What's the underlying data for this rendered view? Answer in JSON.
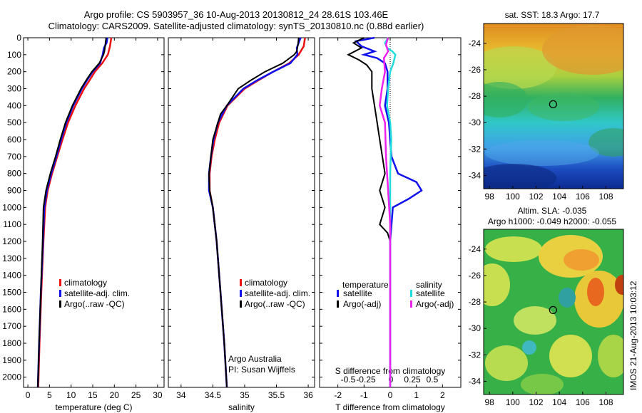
{
  "header": {
    "title_line1": "Argo profile: CS 5903957_36 10-Aug-2013 20130812_24 28.61S 103.46E",
    "title_line2": "Climatology: CARS2009. Satellite-adjusted climatology: synTS_20130810.nc (0.88d earlier)"
  },
  "colors": {
    "climatology": "#ee1111",
    "satellite": "#1111ee",
    "argo": "#000000",
    "salinity_satellite": "#22dddd",
    "salinity_argo": "#ee22ee"
  },
  "chart_data": [
    {
      "type": "line",
      "name_key": "temperature_panel",
      "xlabel": "temperature (deg C)",
      "xlim": [
        -1,
        31.5
      ],
      "xticks": [
        "0",
        "5",
        "10",
        "15",
        "20",
        "25",
        "30"
      ],
      "ylim": [
        0,
        2060
      ],
      "yticks": [
        "0",
        "100",
        "200",
        "300",
        "400",
        "500",
        "600",
        "700",
        "800",
        "900",
        "1000",
        "1100",
        "1200",
        "1300",
        "1400",
        "1500",
        "1600",
        "1700",
        "1800",
        "1900",
        "2000"
      ],
      "legend": [
        "climatology",
        "satellite-adj. clim.",
        "Argo(..raw -QC)"
      ],
      "legend_position": "lower-center",
      "series": [
        {
          "name": "climatology",
          "color_key": "climatology",
          "depth": [
            0,
            50,
            100,
            150,
            200,
            250,
            300,
            400,
            500,
            600,
            700,
            800,
            900,
            1000,
            1200,
            1500,
            1800,
            2060
          ],
          "values": [
            19.3,
            19.0,
            18.5,
            17.2,
            15.5,
            14.3,
            13.0,
            11.0,
            9.3,
            8.0,
            6.8,
            5.6,
            4.6,
            4.0,
            3.6,
            3.1,
            2.7,
            2.4
          ]
        },
        {
          "name": "satellite-adj. clim.",
          "color_key": "satellite",
          "depth": [
            0,
            30,
            60,
            100,
            150,
            200,
            250,
            300,
            400,
            500,
            600,
            700,
            800,
            900,
            1000,
            1200,
            1500,
            1800,
            2060
          ],
          "values": [
            18.4,
            18.2,
            17.6,
            17.3,
            16.7,
            15.0,
            13.7,
            12.5,
            10.5,
            8.9,
            7.7,
            6.6,
            5.4,
            4.4,
            3.8,
            3.5,
            3.0,
            2.6,
            2.3
          ]
        },
        {
          "name": "Argo(..raw -QC)",
          "color_key": "argo",
          "depth": [
            0,
            40,
            80,
            100,
            150,
            200,
            250,
            300,
            400,
            500,
            600,
            700,
            800,
            900,
            1000,
            1200,
            1500,
            1800,
            2060
          ],
          "values": [
            18.1,
            17.9,
            17.7,
            17.5,
            16.5,
            14.8,
            13.5,
            12.3,
            10.3,
            8.7,
            7.5,
            6.4,
            5.2,
            4.2,
            3.6,
            3.4,
            3.0,
            2.6,
            2.3
          ]
        }
      ]
    },
    {
      "type": "line",
      "name_key": "salinity_panel",
      "xlabel": "salinity",
      "xlim": [
        33.8,
        36.1
      ],
      "xticks": [
        "34",
        "34.5",
        "35",
        "35.5",
        "36"
      ],
      "ylim": [
        0,
        2060
      ],
      "legend": [
        "climatology",
        "satellite-adj. clim.",
        "Argo(..raw -QC)"
      ],
      "legend_position": "lower-center",
      "annotations": [
        "Argo Australia",
        "PI: Susan Wijffels"
      ],
      "series": [
        {
          "name": "climatology",
          "color_key": "climatology",
          "depth": [
            0,
            50,
            100,
            150,
            200,
            250,
            300,
            400,
            500,
            600,
            700,
            800,
            900,
            1000,
            1200,
            1500,
            1800,
            2060
          ],
          "values": [
            35.95,
            35.93,
            35.85,
            35.7,
            35.45,
            35.22,
            35.0,
            34.73,
            34.6,
            34.53,
            34.48,
            34.45,
            34.45,
            34.5,
            34.56,
            34.62,
            34.68,
            34.72
          ]
        },
        {
          "name": "satellite-adj. clim.",
          "color_key": "satellite",
          "depth": [
            0,
            30,
            60,
            100,
            150,
            200,
            250,
            300,
            400,
            500,
            600,
            700,
            800,
            900,
            1000,
            1200,
            1500,
            1800,
            2060
          ],
          "values": [
            35.88,
            35.85,
            35.82,
            35.83,
            35.72,
            35.45,
            35.2,
            34.98,
            34.72,
            34.58,
            34.51,
            34.47,
            34.44,
            34.44,
            34.5,
            34.56,
            34.62,
            34.68,
            34.72
          ]
        },
        {
          "name": "Argo(..raw -QC)",
          "color_key": "argo",
          "depth": [
            0,
            40,
            80,
            100,
            150,
            200,
            250,
            300,
            400,
            450,
            500,
            600,
            700,
            800,
            900,
            1000,
            1200,
            1500,
            1800,
            2060
          ],
          "values": [
            35.85,
            35.84,
            35.82,
            35.78,
            35.6,
            35.32,
            35.1,
            34.9,
            34.72,
            34.62,
            34.58,
            34.5,
            34.47,
            34.44,
            34.45,
            34.5,
            34.56,
            34.62,
            34.68,
            34.72
          ]
        }
      ]
    },
    {
      "type": "line",
      "name_key": "difference_panel",
      "xlabel": "T difference from climatology",
      "top_label": "S difference from climatology",
      "xlim": [
        -2.7,
        2.7
      ],
      "xticks": [
        "-2",
        "-1",
        "0",
        "1",
        "2"
      ],
      "top_ticks": [
        "-0.5",
        "-0.25",
        "0",
        "0.25",
        "0.5"
      ],
      "ylim": [
        0,
        2060
      ],
      "legend_groups": [
        {
          "title": "temperature",
          "items": [
            "satellite",
            "Argo(-adj)"
          ]
        },
        {
          "title": "salinity",
          "items": [
            "satellite",
            "Argo(-adj)"
          ]
        }
      ],
      "legend_position": "lower-center",
      "series": [
        {
          "name": "temperature satellite",
          "color_key": "satellite",
          "depth": [
            0,
            20,
            50,
            80,
            100,
            120,
            150,
            200,
            300,
            400,
            500,
            600,
            700,
            800,
            850,
            900,
            950,
            1000,
            1200,
            1500,
            2060
          ],
          "values": [
            -0.6,
            -1.3,
            -1.1,
            -0.6,
            -1.0,
            -0.5,
            -0.2,
            -0.1,
            -0.1,
            -0.2,
            -0.05,
            0.0,
            0.05,
            0.3,
            1.0,
            1.2,
            0.7,
            0.1,
            0.0,
            0.0,
            0.0
          ]
        },
        {
          "name": "temperature Argo(-adj)",
          "color_key": "argo",
          "depth": [
            0,
            30,
            60,
            100,
            130,
            160,
            200,
            300,
            400,
            500,
            600,
            700,
            800,
            900,
            1000,
            1050,
            1100,
            1150,
            1200,
            1500,
            2060
          ],
          "values": [
            -1.0,
            -1.4,
            -1.1,
            -1.6,
            -1.2,
            -0.9,
            -0.7,
            -0.7,
            -0.6,
            -0.5,
            -0.4,
            -0.3,
            -0.2,
            -0.4,
            -0.2,
            -0.3,
            -0.4,
            -0.1,
            0.0,
            0.0,
            0.0
          ]
        },
        {
          "name": "salinity satellite",
          "color_key": "salinity_satellite",
          "depth": [
            0,
            30,
            60,
            80,
            100,
            150,
            200,
            300,
            400,
            500,
            600,
            800,
            1000,
            1500,
            2060
          ],
          "values": [
            -0.02,
            -0.05,
            -0.03,
            0.02,
            0.05,
            0.03,
            0.0,
            -0.02,
            -0.03,
            0.0,
            0.01,
            0.0,
            0.0,
            0.0,
            0.0
          ]
        },
        {
          "name": "salinity Argo(-adj)",
          "color_key": "salinity_argo",
          "depth": [
            0,
            40,
            80,
            120,
            200,
            300,
            400,
            500,
            700,
            900,
            1100,
            1300,
            2060
          ],
          "values": [
            -0.02,
            -0.04,
            -0.02,
            -0.06,
            -0.05,
            -0.08,
            -0.1,
            -0.05,
            -0.04,
            -0.02,
            0.0,
            0.0,
            0.0
          ]
        }
      ]
    },
    {
      "type": "heatmap",
      "name_key": "sst_map",
      "title": "sat. SST: 18.3 Argo: 17.7",
      "xticks": [
        "98",
        "100",
        "102",
        "104",
        "106",
        "108"
      ],
      "yticks": [
        "-24",
        "-26",
        "-28",
        "-30",
        "-32",
        "-34"
      ],
      "xlim": [
        97.5,
        109.5
      ],
      "ylim": [
        -35,
        -22.5
      ],
      "marker": {
        "lon": 103.46,
        "lat": -28.61
      }
    },
    {
      "type": "heatmap",
      "name_key": "sla_map",
      "title_line1": "Altim. SLA: -0.035",
      "title_line2": "Argo h1000: -0.049 h2000: -0.055",
      "xticks": [
        "98",
        "100",
        "102",
        "104",
        "106",
        "108"
      ],
      "yticks": [
        "-24",
        "-26",
        "-28",
        "-30",
        "-32",
        "-34"
      ],
      "xlim": [
        97.5,
        109.5
      ],
      "ylim": [
        -35,
        -22.5
      ],
      "marker": {
        "lon": 103.46,
        "lat": -28.61
      }
    }
  ],
  "side_label": "IMOS 21-Aug-2013 10:03:12"
}
